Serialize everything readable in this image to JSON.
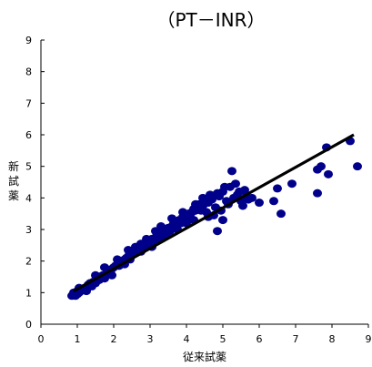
{
  "chart_data": {
    "type": "scatter",
    "title": "（PT－INR）",
    "xlabel": "従来試薬",
    "ylabel": "新試薬",
    "xlim": [
      0,
      9
    ],
    "ylim": [
      0,
      9
    ],
    "x_ticks": [
      "0",
      "1",
      "2",
      "3",
      "4",
      "5",
      "6",
      "7",
      "8",
      "9"
    ],
    "y_ticks": [
      "0",
      "1",
      "2",
      "3",
      "4",
      "5",
      "6",
      "7",
      "8",
      "9"
    ],
    "grid": false,
    "legend": "none",
    "colors": {
      "points": "#00008B",
      "trendline": "#000000",
      "axis": "#000000"
    },
    "trendline": {
      "x": [
        0.9,
        8.6
      ],
      "y": [
        1.05,
        6.0
      ]
    },
    "series": [
      {
        "points": [
          [
            0.85,
            0.9
          ],
          [
            0.9,
            0.95
          ],
          [
            0.9,
            1.0
          ],
          [
            0.95,
            0.9
          ],
          [
            1.0,
            0.95
          ],
          [
            1.0,
            1.05
          ],
          [
            1.05,
            1.0
          ],
          [
            1.1,
            1.05
          ],
          [
            1.15,
            1.1
          ],
          [
            1.2,
            1.15
          ],
          [
            1.25,
            1.1
          ],
          [
            1.3,
            1.25
          ],
          [
            1.35,
            1.3
          ],
          [
            1.4,
            1.2
          ],
          [
            1.45,
            1.35
          ],
          [
            1.5,
            1.3
          ],
          [
            1.55,
            1.45
          ],
          [
            1.6,
            1.4
          ],
          [
            1.65,
            1.5
          ],
          [
            1.7,
            1.55
          ],
          [
            1.75,
            1.45
          ],
          [
            1.8,
            1.6
          ],
          [
            1.85,
            1.7
          ],
          [
            1.9,
            1.65
          ],
          [
            1.95,
            1.75
          ],
          [
            2.0,
            1.8
          ],
          [
            2.05,
            1.85
          ],
          [
            2.1,
            1.9
          ],
          [
            2.15,
            1.85
          ],
          [
            2.2,
            2.0
          ],
          [
            2.25,
            1.95
          ],
          [
            2.3,
            2.05
          ],
          [
            2.35,
            2.1
          ],
          [
            2.4,
            2.15
          ],
          [
            2.45,
            2.05
          ],
          [
            2.5,
            2.2
          ],
          [
            2.55,
            2.3
          ],
          [
            2.6,
            2.25
          ],
          [
            2.65,
            2.35
          ],
          [
            2.7,
            2.4
          ],
          [
            2.75,
            2.3
          ],
          [
            2.8,
            2.45
          ],
          [
            2.85,
            2.55
          ],
          [
            2.9,
            2.5
          ],
          [
            2.95,
            2.6
          ],
          [
            3.0,
            2.55
          ],
          [
            3.05,
            2.7
          ],
          [
            3.1,
            2.65
          ],
          [
            3.15,
            2.75
          ],
          [
            3.2,
            2.8
          ],
          [
            3.25,
            2.7
          ],
          [
            3.3,
            2.85
          ],
          [
            3.35,
            2.95
          ],
          [
            3.4,
            2.9
          ],
          [
            3.45,
            3.0
          ],
          [
            3.5,
            3.05
          ],
          [
            3.55,
            2.95
          ],
          [
            3.6,
            3.1
          ],
          [
            3.65,
            3.2
          ],
          [
            3.7,
            3.15
          ],
          [
            3.75,
            3.25
          ],
          [
            3.8,
            3.3
          ],
          [
            3.85,
            3.2
          ],
          [
            3.9,
            3.4
          ],
          [
            3.95,
            3.35
          ],
          [
            4.0,
            3.45
          ],
          [
            4.05,
            3.5
          ],
          [
            4.1,
            3.4
          ],
          [
            4.15,
            3.55
          ],
          [
            4.2,
            3.65
          ],
          [
            4.25,
            3.6
          ],
          [
            4.3,
            3.7
          ],
          [
            4.35,
            3.8
          ],
          [
            4.4,
            3.6
          ],
          [
            4.45,
            3.75
          ],
          [
            4.5,
            3.9
          ],
          [
            4.6,
            3.85
          ],
          [
            4.7,
            3.95
          ],
          [
            4.8,
            3.7
          ],
          [
            4.9,
            4.05
          ],
          [
            5.0,
            4.2
          ],
          [
            5.1,
            3.9
          ],
          [
            5.2,
            4.35
          ],
          [
            5.3,
            4.0
          ],
          [
            5.4,
            4.1
          ],
          [
            5.5,
            3.9
          ],
          [
            5.6,
            4.25
          ],
          [
            5.7,
            3.95
          ],
          [
            5.8,
            4.0
          ],
          [
            6.0,
            3.85
          ],
          [
            6.4,
            3.9
          ],
          [
            6.5,
            4.3
          ],
          [
            6.6,
            3.5
          ],
          [
            6.9,
            4.45
          ],
          [
            7.6,
            4.15
          ],
          [
            7.6,
            4.9
          ],
          [
            7.7,
            5.0
          ],
          [
            7.9,
            4.75
          ],
          [
            7.85,
            5.6
          ],
          [
            8.5,
            5.8
          ],
          [
            8.7,
            5.0
          ],
          [
            1.05,
            1.15
          ],
          [
            1.25,
            1.05
          ],
          [
            1.5,
            1.55
          ],
          [
            1.75,
            1.8
          ],
          [
            1.95,
            1.55
          ],
          [
            2.1,
            2.05
          ],
          [
            2.3,
            1.9
          ],
          [
            2.4,
            2.35
          ],
          [
            2.6,
            2.45
          ],
          [
            2.75,
            2.55
          ],
          [
            2.9,
            2.7
          ],
          [
            3.05,
            2.45
          ],
          [
            3.15,
            2.95
          ],
          [
            3.3,
            3.1
          ],
          [
            3.45,
            2.8
          ],
          [
            3.6,
            3.35
          ],
          [
            3.75,
            3.0
          ],
          [
            3.9,
            3.55
          ],
          [
            4.0,
            3.2
          ],
          [
            4.2,
            3.3
          ],
          [
            4.25,
            3.8
          ],
          [
            4.45,
            4.0
          ],
          [
            4.55,
            3.55
          ],
          [
            4.65,
            4.1
          ],
          [
            4.75,
            3.45
          ],
          [
            4.85,
            4.15
          ],
          [
            4.95,
            3.6
          ],
          [
            5.05,
            4.35
          ],
          [
            5.15,
            3.8
          ],
          [
            5.25,
            4.85
          ],
          [
            5.35,
            4.45
          ],
          [
            5.45,
            4.2
          ],
          [
            5.55,
            3.75
          ],
          [
            5.65,
            4.05
          ],
          [
            4.85,
            2.95
          ],
          [
            5.0,
            3.3
          ],
          [
            4.6,
            3.4
          ]
        ]
      }
    ]
  }
}
